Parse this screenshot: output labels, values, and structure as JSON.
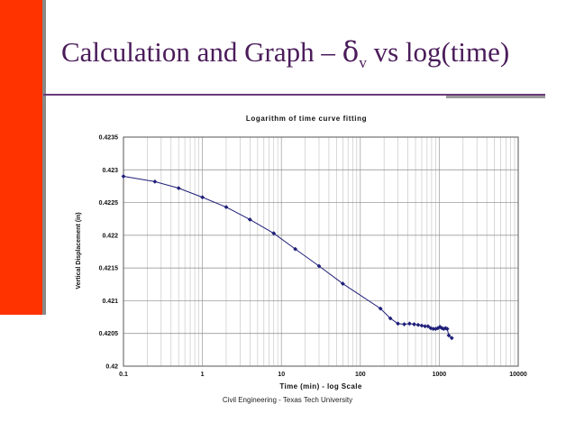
{
  "slide": {
    "title_prefix": "Calculation and Graph – ",
    "title_delta": "δ",
    "title_sub": "v",
    "title_suffix": " vs log(time)",
    "footer": "Civil Engineering - Texas Tech University"
  },
  "colors": {
    "accent": "#ff3300",
    "title": "#4b1c5a",
    "series": "#1f1f7a"
  },
  "chart_data": {
    "type": "line",
    "title": "Logarithm of time curve fitting",
    "xlabel": "Time (min) - log Scale",
    "ylabel": "Vertical Displacement (in)",
    "xscale": "log",
    "xlim": [
      0.1,
      10000
    ],
    "ylim": [
      0.42,
      0.4235
    ],
    "xticks": [
      "0.1",
      "1",
      "10",
      "100",
      "1000",
      "10000"
    ],
    "yticks": [
      "0.42",
      "0.4205",
      "0.421",
      "0.4215",
      "0.422",
      "0.4225",
      "0.423",
      "0.4235"
    ],
    "grid": true,
    "marker": "diamond",
    "series": [
      {
        "name": "Vertical Displacement",
        "x": [
          0.1,
          0.25,
          0.5,
          1,
          2,
          4,
          8,
          15,
          30,
          60,
          180,
          240,
          300,
          360,
          420,
          480,
          540,
          600,
          660,
          720,
          780,
          840,
          900,
          960,
          1020,
          1080,
          1140,
          1200,
          1260,
          1320,
          1440
        ],
        "y": [
          0.4229,
          0.42282,
          0.42272,
          0.42258,
          0.42243,
          0.42224,
          0.42203,
          0.42179,
          0.42153,
          0.42126,
          0.42088,
          0.42073,
          0.42065,
          0.42064,
          0.42065,
          0.42064,
          0.42063,
          0.42062,
          0.42061,
          0.42061,
          0.42058,
          0.42057,
          0.42057,
          0.42058,
          0.4206,
          0.42058,
          0.42057,
          0.42058,
          0.42057,
          0.42047,
          0.42043
        ]
      }
    ]
  }
}
